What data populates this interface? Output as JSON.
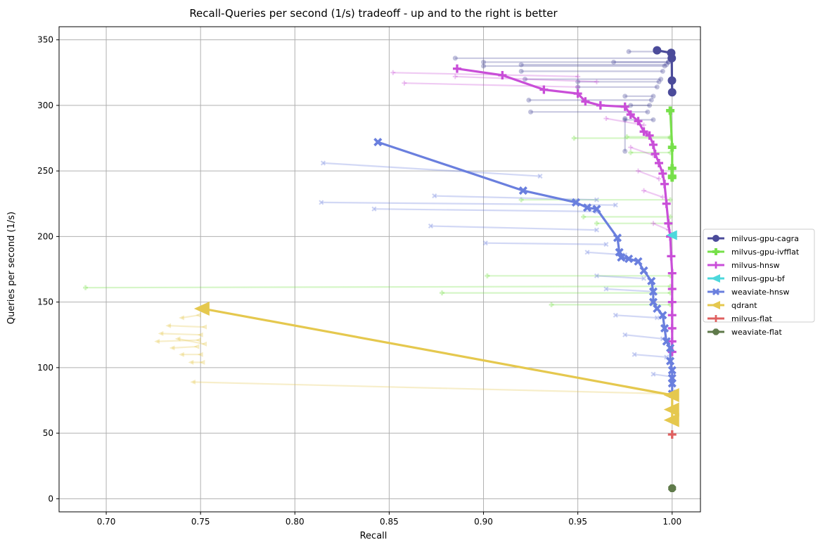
{
  "chart_data": {
    "type": "line",
    "title": "Recall-Queries per second (1/s) tradeoff - up and to the right is better",
    "xlabel": "Recall",
    "ylabel": "Queries per second (1/s)",
    "xlim": [
      0.675,
      1.015
    ],
    "ylim": [
      -10,
      360
    ],
    "xticks": [
      "0.70",
      "0.75",
      "0.80",
      "0.85",
      "0.90",
      "0.95",
      "1.00"
    ],
    "yticks": [
      "0",
      "50",
      "100",
      "150",
      "200",
      "250",
      "300",
      "350"
    ],
    "grid": true,
    "legend_position": "right",
    "series": [
      {
        "name": "milvus-gpu-cagra",
        "color": "#4b4b9a",
        "marker": "circle",
        "pareto": [
          [
            0.992,
            342
          ],
          [
            0.9995,
            340
          ],
          [
            0.9998,
            336
          ],
          [
            0.9999,
            319
          ],
          [
            1.0,
            310
          ]
        ],
        "runs": [
          [
            [
              0.885,
              336
            ],
            [
              0.999,
              336
            ]
          ],
          [
            [
              0.9,
              333
            ],
            [
              0.998,
              333
            ]
          ],
          [
            [
              0.92,
              331
            ],
            [
              0.997,
              331
            ]
          ],
          [
            [
              0.9,
              330
            ],
            [
              0.996,
              330
            ]
          ],
          [
            [
              0.92,
              326
            ],
            [
              0.995,
              326
            ]
          ],
          [
            [
              0.922,
              320
            ],
            [
              0.994,
              320
            ]
          ],
          [
            [
              0.95,
              318
            ],
            [
              0.993,
              318
            ]
          ],
          [
            [
              0.95,
              314
            ],
            [
              0.992,
              314
            ]
          ],
          [
            [
              0.975,
              307
            ],
            [
              0.99,
              307
            ]
          ],
          [
            [
              0.924,
              304
            ],
            [
              0.989,
              304
            ]
          ],
          [
            [
              0.978,
              300
            ],
            [
              0.988,
              300
            ]
          ],
          [
            [
              0.925,
              295
            ],
            [
              0.987,
              295
            ]
          ],
          [
            [
              0.975,
              289
            ],
            [
              0.99,
              289
            ]
          ],
          [
            [
              0.975,
              265
            ],
            [
              0.975,
              290
            ]
          ],
          [
            [
              0.977,
              341
            ],
            [
              0.999,
              341
            ]
          ],
          [
            [
              0.969,
              333
            ],
            [
              0.998,
              333
            ]
          ]
        ]
      },
      {
        "name": "milvus-gpu-ivfflat",
        "color": "#77e04a",
        "marker": "plus-filled",
        "pareto": [
          [
            0.999,
            296
          ],
          [
            1.0,
            268
          ],
          [
            1.0,
            252
          ],
          [
            1.0,
            246
          ],
          [
            1.0,
            245
          ]
        ],
        "runs": [
          [
            [
              0.948,
              275
            ],
            [
              0.999,
              275
            ]
          ],
          [
            [
              0.976,
              276
            ],
            [
              0.999,
              276
            ]
          ],
          [
            [
              0.978,
              264
            ],
            [
              0.999,
              264
            ]
          ],
          [
            [
              0.92,
              228
            ],
            [
              0.999,
              228
            ]
          ],
          [
            [
              0.953,
              215
            ],
            [
              0.999,
              215
            ]
          ],
          [
            [
              0.96,
              210
            ],
            [
              0.999,
              210
            ]
          ],
          [
            [
              0.902,
              170
            ],
            [
              0.999,
              170
            ]
          ],
          [
            [
              0.689,
              161
            ],
            [
              0.999,
              162
            ]
          ],
          [
            [
              0.878,
              157
            ],
            [
              0.999,
              157
            ]
          ],
          [
            [
              0.936,
              148
            ],
            [
              0.999,
              148
            ]
          ]
        ]
      },
      {
        "name": "milvus-hnsw",
        "color": "#c94ed8",
        "marker": "plus",
        "pareto": [
          [
            0.886,
            328
          ],
          [
            0.91,
            323
          ],
          [
            0.932,
            312
          ],
          [
            0.95,
            309
          ],
          [
            0.954,
            303
          ],
          [
            0.962,
            300
          ],
          [
            0.975,
            299
          ],
          [
            0.978,
            293
          ],
          [
            0.982,
            288
          ],
          [
            0.985,
            280
          ],
          [
            0.988,
            277
          ],
          [
            0.99,
            270
          ],
          [
            0.991,
            263
          ],
          [
            0.993,
            256
          ],
          [
            0.995,
            248
          ],
          [
            0.996,
            240
          ],
          [
            0.997,
            225
          ],
          [
            0.998,
            210
          ],
          [
            0.999,
            200
          ],
          [
            0.9995,
            185
          ],
          [
            1.0,
            172
          ],
          [
            1.0,
            160
          ],
          [
            1.0,
            150
          ],
          [
            1.0,
            140
          ],
          [
            1.0,
            130
          ],
          [
            1.0,
            120
          ],
          [
            1.0,
            112
          ]
        ],
        "runs": [
          [
            [
              0.852,
              325
            ],
            [
              0.95,
              322
            ]
          ],
          [
            [
              0.858,
              317
            ],
            [
              0.95,
              314
            ]
          ],
          [
            [
              0.885,
              322
            ],
            [
              0.96,
              318
            ]
          ],
          [
            [
              0.965,
              290
            ],
            [
              0.985,
              285
            ]
          ],
          [
            [
              0.978,
              268
            ],
            [
              0.99,
              262
            ]
          ],
          [
            [
              0.982,
              250
            ],
            [
              0.993,
              244
            ]
          ],
          [
            [
              0.985,
              235
            ],
            [
              0.995,
              230
            ]
          ],
          [
            [
              0.99,
              210
            ],
            [
              0.998,
              205
            ]
          ]
        ]
      },
      {
        "name": "milvus-gpu-bf",
        "color": "#4dd8dc",
        "marker": "triangle-left",
        "pareto": [
          [
            1.0,
            201
          ]
        ],
        "runs": []
      },
      {
        "name": "weaviate-hnsw",
        "color": "#6a7fde",
        "marker": "x",
        "pareto": [
          [
            0.844,
            272
          ],
          [
            0.921,
            235
          ],
          [
            0.949,
            226
          ],
          [
            0.955,
            222
          ],
          [
            0.96,
            221
          ],
          [
            0.971,
            199
          ],
          [
            0.972,
            188
          ],
          [
            0.973,
            184
          ],
          [
            0.977,
            183
          ],
          [
            0.982,
            181
          ],
          [
            0.985,
            174
          ],
          [
            0.989,
            166
          ],
          [
            0.99,
            158
          ],
          [
            0.99,
            150
          ],
          [
            0.992,
            145
          ],
          [
            0.995,
            140
          ],
          [
            0.996,
            130
          ],
          [
            0.997,
            120
          ],
          [
            0.999,
            115
          ],
          [
            0.999,
            105
          ],
          [
            1.0,
            98
          ],
          [
            1.0,
            92
          ],
          [
            1.0,
            88
          ],
          [
            1.0,
            80
          ]
        ],
        "runs": [
          [
            [
              0.815,
              256
            ],
            [
              0.93,
              246
            ]
          ],
          [
            [
              0.874,
              231
            ],
            [
              0.96,
              228
            ]
          ],
          [
            [
              0.814,
              226
            ],
            [
              0.97,
              224
            ]
          ],
          [
            [
              0.842,
              221
            ],
            [
              0.96,
              219
            ]
          ],
          [
            [
              0.872,
              208
            ],
            [
              0.96,
              205
            ]
          ],
          [
            [
              0.901,
              195
            ],
            [
              0.965,
              194
            ]
          ],
          [
            [
              0.955,
              188
            ],
            [
              0.975,
              186
            ]
          ],
          [
            [
              0.96,
              170
            ],
            [
              0.985,
              168
            ]
          ],
          [
            [
              0.965,
              160
            ],
            [
              0.99,
              158
            ]
          ],
          [
            [
              0.97,
              140
            ],
            [
              0.992,
              138
            ]
          ],
          [
            [
              0.975,
              125
            ],
            [
              0.995,
              122
            ]
          ],
          [
            [
              0.98,
              110
            ],
            [
              0.997,
              108
            ]
          ],
          [
            [
              0.99,
              95
            ],
            [
              1.0,
              93
            ]
          ]
        ]
      },
      {
        "name": "qdrant",
        "color": "#e5c84e",
        "marker": "triangle-left",
        "pareto": [
          [
            0.751,
            145
          ],
          [
            1.0,
            79
          ],
          [
            1.0,
            68
          ],
          [
            1.0,
            60
          ]
        ],
        "runs": [
          [
            [
              0.733,
              132
            ],
            [
              0.752,
              131
            ]
          ],
          [
            [
              0.729,
              126
            ],
            [
              0.75,
              125
            ]
          ],
          [
            [
              0.727,
              120
            ],
            [
              0.749,
              121
            ]
          ],
          [
            [
              0.735,
              115
            ],
            [
              0.748,
              116
            ]
          ],
          [
            [
              0.74,
              110
            ],
            [
              0.75,
              110
            ]
          ],
          [
            [
              0.745,
              104
            ],
            [
              0.751,
              104
            ]
          ],
          [
            [
              0.746,
              89
            ],
            [
              0.999,
              80
            ]
          ],
          [
            [
              0.74,
              138
            ],
            [
              0.749,
              140
            ]
          ],
          [
            [
              0.738,
              122
            ],
            [
              0.752,
              118
            ]
          ]
        ]
      },
      {
        "name": "milvus-flat",
        "color": "#e06060",
        "marker": "plus",
        "pareto": [
          [
            1.0,
            49
          ]
        ],
        "runs": []
      },
      {
        "name": "weaviate-flat",
        "color": "#5f7a4a",
        "marker": "octagon",
        "pareto": [
          [
            1.0,
            8
          ]
        ],
        "runs": []
      }
    ]
  }
}
